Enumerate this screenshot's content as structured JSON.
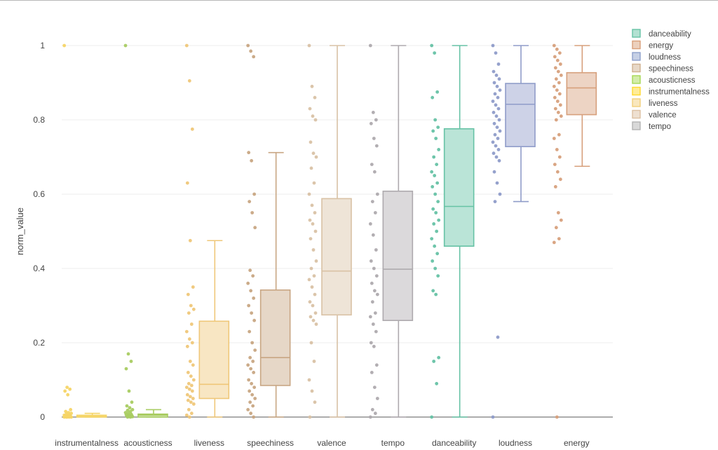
{
  "chart_data": {
    "type": "box",
    "title": "",
    "xlabel": "",
    "ylabel": "norm_value",
    "ylim": [
      0,
      1
    ],
    "y_ticks": [
      "0",
      "0.2",
      "0.4",
      "0.6",
      "0.8",
      "1"
    ],
    "grid": true,
    "legend_position": "top-right",
    "legend": [
      {
        "name": "danceability",
        "color": "#66c2a5"
      },
      {
        "name": "energy",
        "color": "#d9a07a"
      },
      {
        "name": "loudness",
        "color": "#8da0cb"
      },
      {
        "name": "speechiness",
        "color": "#cfb18f"
      },
      {
        "name": "acousticness",
        "color": "#a6d854"
      },
      {
        "name": "instrumentalness",
        "color": "#ffd92f"
      },
      {
        "name": "liveness",
        "color": "#f2cf7a"
      },
      {
        "name": "valence",
        "color": "#dcc0a2"
      },
      {
        "name": "tempo",
        "color": "#b3b3b3"
      }
    ],
    "series": [
      {
        "name": "instrumentalness",
        "color": "#f5d567",
        "q1": 0,
        "median": 0.002,
        "q3": 0.005,
        "whisker_low": 0,
        "whisker_high": 0.01,
        "points": [
          1,
          0.08,
          0.075,
          0.07,
          0.06,
          0.02,
          0.015,
          0.012,
          0.01,
          0.008,
          0.006,
          0.005,
          0.004,
          0.003,
          0.003,
          0.002,
          0.002,
          0.001,
          0.001,
          0,
          0,
          0,
          0,
          0
        ]
      },
      {
        "name": "acousticness",
        "color": "#a9cc62",
        "q1": 0,
        "median": 0.005,
        "q3": 0.008,
        "whisker_low": 0,
        "whisker_high": 0.02,
        "points": [
          1,
          0.17,
          0.15,
          0.13,
          0.07,
          0.04,
          0.03,
          0.025,
          0.02,
          0.018,
          0.015,
          0.012,
          0.01,
          0.008,
          0.006,
          0.005,
          0.004,
          0.003,
          0.002,
          0.001,
          0,
          0
        ]
      },
      {
        "name": "liveness",
        "color": "#efc779",
        "q1": 0.05,
        "median": 0.088,
        "q3": 0.258,
        "whisker_low": 0,
        "whisker_high": 0.475,
        "points": [
          1,
          0.905,
          0.775,
          0.63,
          0.475,
          0.35,
          0.33,
          0.3,
          0.29,
          0.28,
          0.25,
          0.23,
          0.21,
          0.2,
          0.19,
          0.15,
          0.14,
          0.12,
          0.11,
          0.1,
          0.09,
          0.085,
          0.08,
          0.075,
          0.07,
          0.06,
          0.055,
          0.05,
          0.045,
          0.04,
          0.035,
          0.02,
          0.01,
          0.005,
          0
        ]
      },
      {
        "name": "speechiness",
        "color": "#c8a683",
        "q1": 0.085,
        "median": 0.16,
        "q3": 0.342,
        "whisker_low": 0,
        "whisker_high": 0.712,
        "points": [
          1,
          0.985,
          0.97,
          0.712,
          0.69,
          0.6,
          0.58,
          0.55,
          0.51,
          0.395,
          0.38,
          0.36,
          0.34,
          0.32,
          0.3,
          0.28,
          0.26,
          0.23,
          0.2,
          0.18,
          0.16,
          0.15,
          0.14,
          0.13,
          0.12,
          0.1,
          0.09,
          0.08,
          0.07,
          0.06,
          0.05,
          0.04,
          0.03,
          0.02,
          0.01,
          0
        ]
      },
      {
        "name": "valence",
        "color": "#d9c2a5",
        "q1": 0.275,
        "median": 0.393,
        "q3": 0.588,
        "whisker_low": 0,
        "whisker_high": 1,
        "points": [
          1,
          0.89,
          0.86,
          0.83,
          0.81,
          0.8,
          0.74,
          0.71,
          0.7,
          0.67,
          0.63,
          0.6,
          0.57,
          0.55,
          0.53,
          0.52,
          0.5,
          0.48,
          0.45,
          0.42,
          0.4,
          0.38,
          0.37,
          0.35,
          0.33,
          0.31,
          0.3,
          0.28,
          0.27,
          0.26,
          0.25,
          0.2,
          0.15,
          0.1,
          0.07,
          0.04,
          0
        ]
      },
      {
        "name": "tempo",
        "color": "#aeaaae",
        "q1": 0.26,
        "median": 0.398,
        "q3": 0.608,
        "whisker_low": 0,
        "whisker_high": 1,
        "points": [
          1,
          0.82,
          0.8,
          0.79,
          0.75,
          0.73,
          0.68,
          0.66,
          0.6,
          0.58,
          0.55,
          0.52,
          0.49,
          0.45,
          0.42,
          0.4,
          0.38,
          0.36,
          0.34,
          0.33,
          0.31,
          0.28,
          0.27,
          0.25,
          0.23,
          0.2,
          0.19,
          0.14,
          0.12,
          0.08,
          0.05,
          0.02,
          0.01,
          0
        ]
      },
      {
        "name": "danceability",
        "color": "#66c2a5",
        "q1": 0.46,
        "median": 0.567,
        "q3": 0.776,
        "whisker_low": 0,
        "whisker_high": 1,
        "points": [
          1,
          0.98,
          0.875,
          0.86,
          0.8,
          0.78,
          0.77,
          0.75,
          0.72,
          0.7,
          0.68,
          0.66,
          0.65,
          0.63,
          0.62,
          0.6,
          0.58,
          0.56,
          0.55,
          0.53,
          0.52,
          0.5,
          0.48,
          0.46,
          0.44,
          0.42,
          0.4,
          0.38,
          0.34,
          0.33,
          0.16,
          0.15,
          0.09,
          0
        ]
      },
      {
        "name": "loudness",
        "color": "#8f9cc9",
        "q1": 0.728,
        "median": 0.842,
        "q3": 0.898,
        "whisker_low": 0.58,
        "whisker_high": 1,
        "points": [
          1,
          0.98,
          0.95,
          0.93,
          0.92,
          0.91,
          0.9,
          0.89,
          0.88,
          0.87,
          0.86,
          0.85,
          0.84,
          0.83,
          0.82,
          0.81,
          0.8,
          0.79,
          0.78,
          0.77,
          0.76,
          0.75,
          0.74,
          0.73,
          0.72,
          0.71,
          0.7,
          0.69,
          0.66,
          0.63,
          0.6,
          0.58,
          0.215,
          0
        ]
      },
      {
        "name": "energy",
        "color": "#d7a07c",
        "q1": 0.814,
        "median": 0.886,
        "q3": 0.927,
        "whisker_low": 0.675,
        "whisker_high": 1,
        "points": [
          1,
          0.99,
          0.98,
          0.97,
          0.96,
          0.95,
          0.94,
          0.93,
          0.92,
          0.91,
          0.9,
          0.89,
          0.88,
          0.87,
          0.86,
          0.85,
          0.84,
          0.83,
          0.82,
          0.81,
          0.8,
          0.76,
          0.75,
          0.72,
          0.7,
          0.68,
          0.66,
          0.64,
          0.62,
          0.55,
          0.53,
          0.51,
          0.48,
          0.47,
          0
        ]
      }
    ]
  }
}
